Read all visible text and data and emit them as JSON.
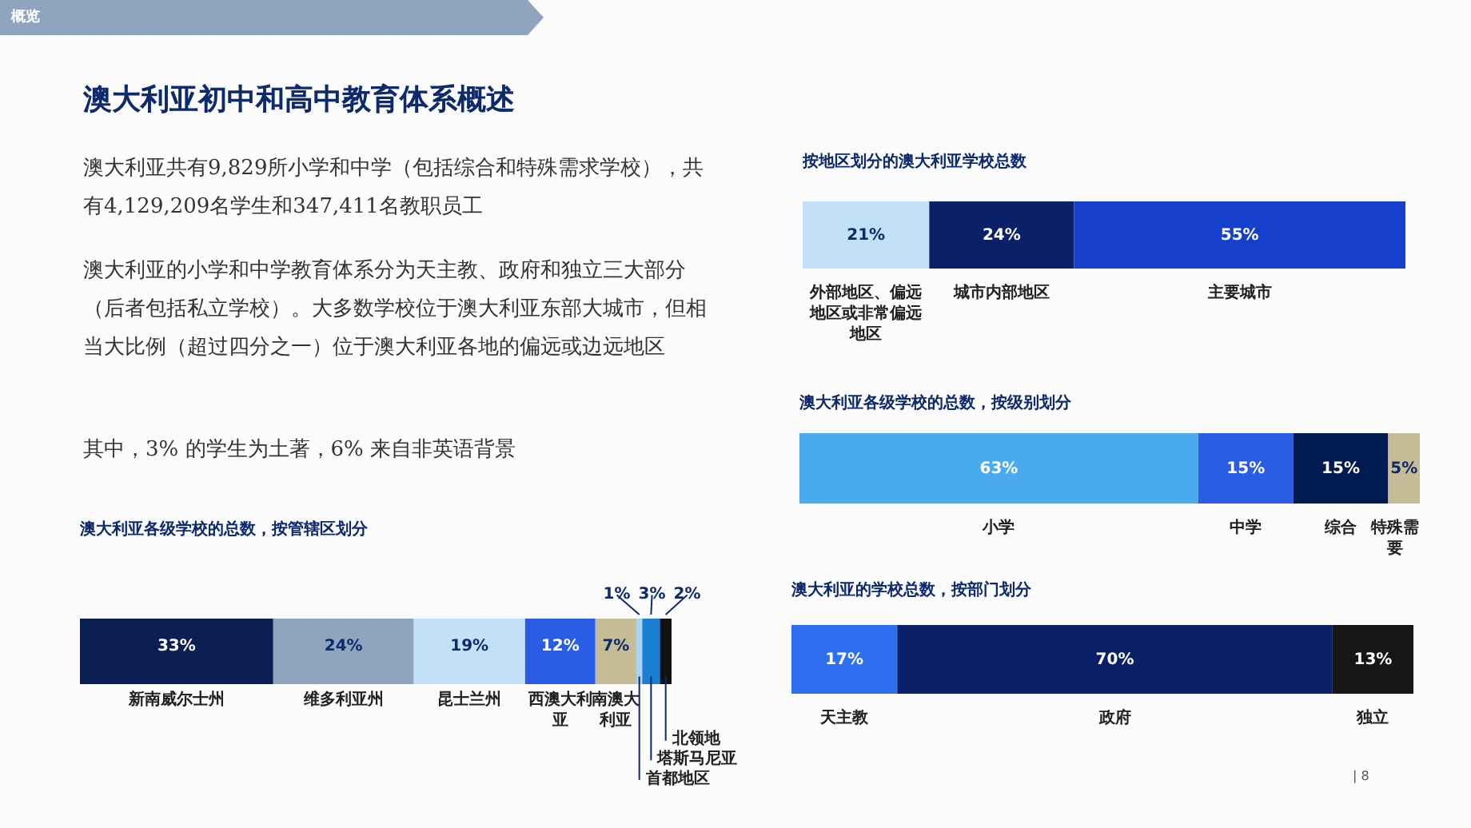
{
  "chart_data": [
    {
      "type": "other",
      "title": "澳大利亚初中和高中教育体系概述",
      "annotations": [
        "概览",
        "澳大利亚共有9,829所小学和中学（包括综合和特殊需求学校），共有4,129,209名学生和347,411名教职员工",
        "澳大利亚的小学和中学教育体系分为天主教、政府和独立三大部分（后者包括私立学校）。大多数学校位于澳大利亚东部大城市，但相当大比例（超过四分之一）位于澳大利亚各地的偏远或边远地区",
        "其中，3% 的学生为土著，6% 来自非英语背景",
        "| 8"
      ]
    },
    {
      "type": "bar",
      "orientation": "horizontal",
      "stacked": true,
      "legend": false,
      "title": "澳大利亚各级学校的总数，按管辖区划分",
      "categories": [
        null
      ],
      "series": [
        {
          "name": "新南威尔士州",
          "color": "#0b1f52",
          "values": [
            33
          ],
          "value_labels": [
            "33%"
          ]
        },
        {
          "name": "维多利亚州",
          "color": "#8fa5bf",
          "values": [
            24
          ],
          "value_labels": [
            "24%"
          ]
        },
        {
          "name": "昆士兰州",
          "color": "#c2e0f7",
          "values": [
            19
          ],
          "value_labels": [
            "19%"
          ]
        },
        {
          "name": "西澳大利亚",
          "color": "#2b5ce6",
          "values": [
            12
          ],
          "value_labels": [
            "12%"
          ]
        },
        {
          "name": "南澳大利亚",
          "color": "#c5bc97",
          "values": [
            7
          ],
          "value_labels": [
            "7%"
          ]
        },
        {
          "name": "首都地区",
          "color": "#a8d4f2",
          "values": [
            1
          ],
          "value_labels": [
            "1%"
          ]
        },
        {
          "name": "塔斯马尼亚",
          "color": "#1a7fd0",
          "values": [
            3
          ],
          "value_labels": [
            "3%"
          ]
        },
        {
          "name": "北领地",
          "color": "#111111",
          "values": [
            2
          ],
          "value_labels": [
            "2%"
          ]
        }
      ]
    },
    {
      "type": "bar",
      "orientation": "horizontal",
      "stacked": true,
      "legend": false,
      "title": "按地区划分的澳大利亚学校总数",
      "categories": [
        null
      ],
      "series": [
        {
          "name": "外部地区、偏远地区或非常偏远地区",
          "color": "#c2e0f7",
          "values": [
            21
          ],
          "value_labels": [
            "21%"
          ]
        },
        {
          "name": "城市内部地区",
          "color": "#0a2169",
          "values": [
            24
          ],
          "value_labels": [
            "24%"
          ]
        },
        {
          "name": "主要城市",
          "color": "#1640cc",
          "values": [
            55
          ],
          "value_labels": [
            "55%"
          ]
        }
      ]
    },
    {
      "type": "bar",
      "orientation": "horizontal",
      "stacked": true,
      "legend": false,
      "title": "澳大利亚各级学校的总数，按级别划分",
      "categories": [
        null
      ],
      "series": [
        {
          "name": "小学",
          "color": "#4aaaee",
          "values": [
            63
          ],
          "value_labels": [
            "63%"
          ]
        },
        {
          "name": "中学",
          "color": "#2b5ce6",
          "values": [
            15
          ],
          "value_labels": [
            "15%"
          ]
        },
        {
          "name": "综合",
          "color": "#001b50",
          "values": [
            15
          ],
          "value_labels": [
            "15%"
          ]
        },
        {
          "name": "特殊需要",
          "color": "#c5bc97",
          "values": [
            5
          ],
          "value_labels": [
            "5%"
          ]
        }
      ]
    },
    {
      "type": "bar",
      "orientation": "horizontal",
      "stacked": true,
      "legend": false,
      "title": "澳大利亚的学校总数，按部门划分",
      "categories": [
        null
      ],
      "series": [
        {
          "name": "天主教",
          "color": "#2e6ff0",
          "values": [
            17
          ],
          "value_labels": [
            "17%"
          ]
        },
        {
          "name": "政府",
          "color": "#0a2169",
          "values": [
            70
          ],
          "value_labels": [
            "70%"
          ]
        },
        {
          "name": "独立",
          "color": "#161616",
          "values": [
            13
          ],
          "value_labels": [
            "13%"
          ]
        }
      ]
    }
  ]
}
